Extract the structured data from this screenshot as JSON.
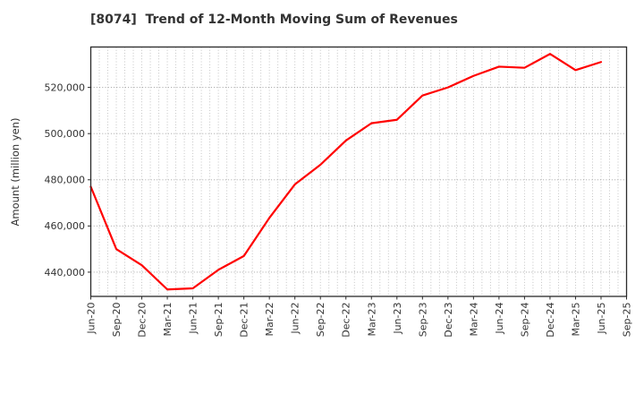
{
  "figure": {
    "title": "[8074]  Trend of 12-Month Moving Sum of Revenues",
    "background_color": "#ffffff"
  },
  "chart_data": {
    "type": "line",
    "title": "[8074]  Trend of 12-Month Moving Sum of Revenues",
    "xlabel": "",
    "ylabel": "Amount (million yen)",
    "x_tick_labels": [
      "Jun-20",
      "Sep-20",
      "Dec-20",
      "Mar-21",
      "Jun-21",
      "Sep-21",
      "Dec-21",
      "Mar-22",
      "Jun-22",
      "Sep-22",
      "Dec-22",
      "Mar-23",
      "Jun-23",
      "Sep-23",
      "Dec-23",
      "Mar-24",
      "Jun-24",
      "Sep-24",
      "Dec-24",
      "Mar-25",
      "Jun-25",
      "Sep-25"
    ],
    "y_ticks": [
      {
        "value": 440000,
        "label": "440,000"
      },
      {
        "value": 460000,
        "label": "460,000"
      },
      {
        "value": 480000,
        "label": "480,000"
      },
      {
        "value": 500000,
        "label": "500,000"
      },
      {
        "value": 520000,
        "label": "520,000"
      }
    ],
    "ylim": [
      429500,
      537500
    ],
    "minor_x_divisions_per_quarter": 3,
    "grid": {
      "horizontal": "dotted",
      "vertical": "dotted",
      "legend": "none"
    },
    "series": [
      {
        "name": "12-Month Moving Sum of Revenues",
        "color": "#ff0000",
        "categories": [
          "Jun-20",
          "Sep-20",
          "Dec-20",
          "Mar-21",
          "Jun-21",
          "Sep-21",
          "Dec-21",
          "Mar-22",
          "Jun-22",
          "Sep-22",
          "Dec-22",
          "Mar-23",
          "Jun-23",
          "Sep-23",
          "Dec-23",
          "Mar-24",
          "Jun-24",
          "Sep-24",
          "Dec-24",
          "Mar-25",
          "Jun-25"
        ],
        "values": [
          477000,
          450000,
          443000,
          432500,
          433000,
          441000,
          447000,
          463500,
          478000,
          486500,
          497000,
          504500,
          506000,
          516500,
          520000,
          525000,
          529000,
          528500,
          534500,
          527500,
          531000
        ]
      }
    ],
    "style": {
      "line_color": "#ff0000",
      "axis_color": "#2a2a2a",
      "tick_label_color": "#333333",
      "grid_major_color": "#9a9a9a",
      "grid_minor_color": "#bdbdbd",
      "title_color": "#333333"
    }
  }
}
